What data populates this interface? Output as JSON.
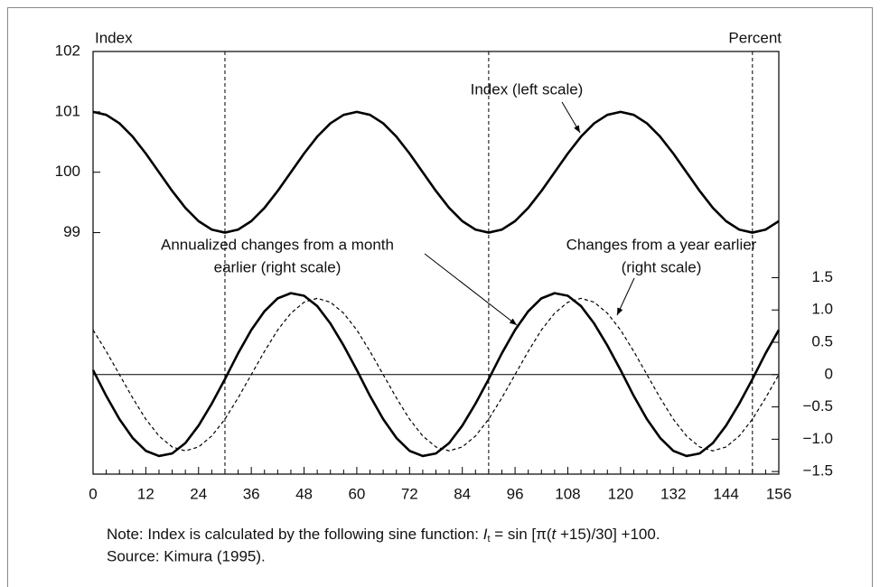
{
  "chart_data": {
    "type": "line",
    "ylabel": "Index",
    "y2label": "Percent",
    "x": [
      0,
      3,
      6,
      9,
      12,
      15,
      18,
      21,
      24,
      27,
      30,
      33,
      36,
      39,
      42,
      45,
      48,
      51,
      54,
      57,
      60,
      63,
      66,
      69,
      72,
      75,
      78,
      81,
      84,
      87,
      90,
      93,
      96,
      99,
      102,
      105,
      108,
      111,
      114,
      117,
      120,
      123,
      126,
      129,
      132,
      135,
      138,
      141,
      144,
      147,
      150,
      153,
      156
    ],
    "xlim": [
      0,
      156
    ],
    "xticks": [
      0,
      12,
      24,
      36,
      48,
      60,
      72,
      84,
      96,
      108,
      120,
      132,
      144,
      156
    ],
    "xminorticks": [
      3,
      6,
      9,
      15,
      18,
      21,
      27,
      30,
      33,
      39,
      42,
      45,
      51,
      54,
      57,
      63,
      66,
      69,
      75,
      78,
      81,
      87,
      90,
      93,
      99,
      102,
      105,
      111,
      114,
      117,
      123,
      126,
      129,
      135,
      138,
      141,
      147,
      150,
      153
    ],
    "ylim": [
      95,
      102
    ],
    "yticks": [
      99,
      100,
      101,
      102
    ],
    "y2lim": [
      -1.54,
      5
    ],
    "y2ticks": [
      1.5,
      {
        "value": 1,
        "label": "1.0"
      },
      0.5,
      0,
      {
        "value": -0.5,
        "label": "−0.5"
      },
      {
        "value": -1,
        "label": "−1.0"
      },
      {
        "value": -1.5,
        "label": "−1.5"
      }
    ],
    "y2_zero_line": 0,
    "vlines": [
      30,
      90,
      150
    ],
    "series": [
      {
        "name": "Index (left scale)",
        "color": "#000000",
        "line_style": "solid",
        "line_width": 2.6,
        "values": [
          101,
          100.95,
          100.81,
          100.59,
          100.31,
          100,
          99.69,
          99.41,
          99.19,
          99.05,
          99,
          99.05,
          99.19,
          99.41,
          99.69,
          100,
          100.31,
          100.59,
          100.81,
          100.95,
          101,
          100.95,
          100.81,
          100.59,
          100.31,
          100,
          99.69,
          99.41,
          99.19,
          99.05,
          99,
          99.05,
          99.19,
          99.41,
          99.69,
          100,
          100.31,
          100.59,
          100.81,
          100.95,
          101,
          100.95,
          100.81,
          100.59,
          100.31,
          100,
          99.69,
          99.41,
          99.19,
          99.05,
          99,
          99.05,
          99.19
        ]
      },
      {
        "name": [
          "Annualized changes from a month",
          "earlier (right scale)"
        ],
        "color": "#000000",
        "line_style": "solid",
        "line_width": 2.6,
        "axis": "y2",
        "values": [
          0.07,
          -0.33,
          -0.69,
          -0.98,
          -1.18,
          -1.26,
          -1.22,
          -1.06,
          -0.79,
          -0.45,
          -0.07,
          0.33,
          0.69,
          0.98,
          1.18,
          1.26,
          1.22,
          1.06,
          0.79,
          0.45,
          0.07,
          -0.33,
          -0.69,
          -0.98,
          -1.18,
          -1.26,
          -1.22,
          -1.06,
          -0.79,
          -0.45,
          -0.07,
          0.33,
          0.69,
          0.98,
          1.18,
          1.26,
          1.22,
          1.06,
          0.79,
          0.45,
          0.07,
          -0.33,
          -0.69,
          -0.98,
          -1.18,
          -1.26,
          -1.22,
          -1.06,
          -0.79,
          -0.45,
          -0.07,
          0.33,
          0.69
        ]
      },
      {
        "name": [
          "Changes from a year earlier",
          "(right scale)"
        ],
        "color": "#000000",
        "line_style": "dashed",
        "line_width": 1.2,
        "axis": "y2",
        "values": [
          0.69,
          0.36,
          0,
          -0.36,
          -0.69,
          -0.95,
          -1.12,
          -1.18,
          -1.12,
          -0.95,
          -0.69,
          -0.36,
          0,
          0.36,
          0.69,
          0.95,
          1.12,
          1.18,
          1.12,
          0.95,
          0.69,
          0.36,
          0,
          -0.36,
          -0.69,
          -0.95,
          -1.12,
          -1.18,
          -1.12,
          -0.95,
          -0.69,
          -0.36,
          0,
          0.36,
          0.69,
          0.95,
          1.12,
          1.18,
          1.12,
          0.95,
          0.69,
          0.36,
          0,
          -0.36,
          -0.69,
          -0.95,
          -1.12,
          -1.18,
          -1.12,
          -0.95,
          -0.69,
          -0.36,
          0
        ]
      }
    ]
  },
  "note": {
    "text": "Note: Index is calculated by the following sine function: ",
    "formula": [
      "I",
      "t",
      " = sin [π(",
      "t",
      " +15)/30] +100."
    ]
  },
  "source": "Source: Kimura (1995)."
}
